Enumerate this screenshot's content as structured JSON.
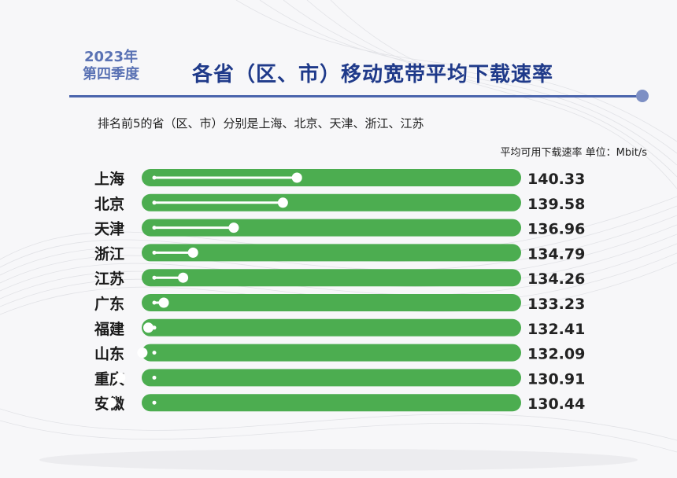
{
  "header": {
    "year": "2023年",
    "quarter": "第四季度",
    "title": "各省（区、市）移动宽带平均下载速率",
    "subtitle": "排名前5的省（区、市）分别是上海、北京、天津、浙江、江苏",
    "unit_note": "平均可用下载速率 单位：Mbit/s"
  },
  "colors": {
    "bar": "#4cad50",
    "accent": "#1f3a8a",
    "year_text": "#5a72b4"
  },
  "chart_data": {
    "type": "bar",
    "orientation": "horizontal",
    "unit": "Mbit/s",
    "categories": [
      "上海",
      "北京",
      "天津",
      "浙江",
      "江苏",
      "广东",
      "福建",
      "山东",
      "重庆",
      "安徽"
    ],
    "values": [
      140.33,
      139.58,
      136.96,
      134.79,
      134.26,
      133.23,
      132.41,
      132.09,
      130.91,
      130.44
    ],
    "value_labels": [
      "140.33",
      "139.58",
      "136.96",
      "134.79",
      "134.26",
      "133.23",
      "132.41",
      "132.09",
      "130.91",
      "130.44"
    ]
  }
}
